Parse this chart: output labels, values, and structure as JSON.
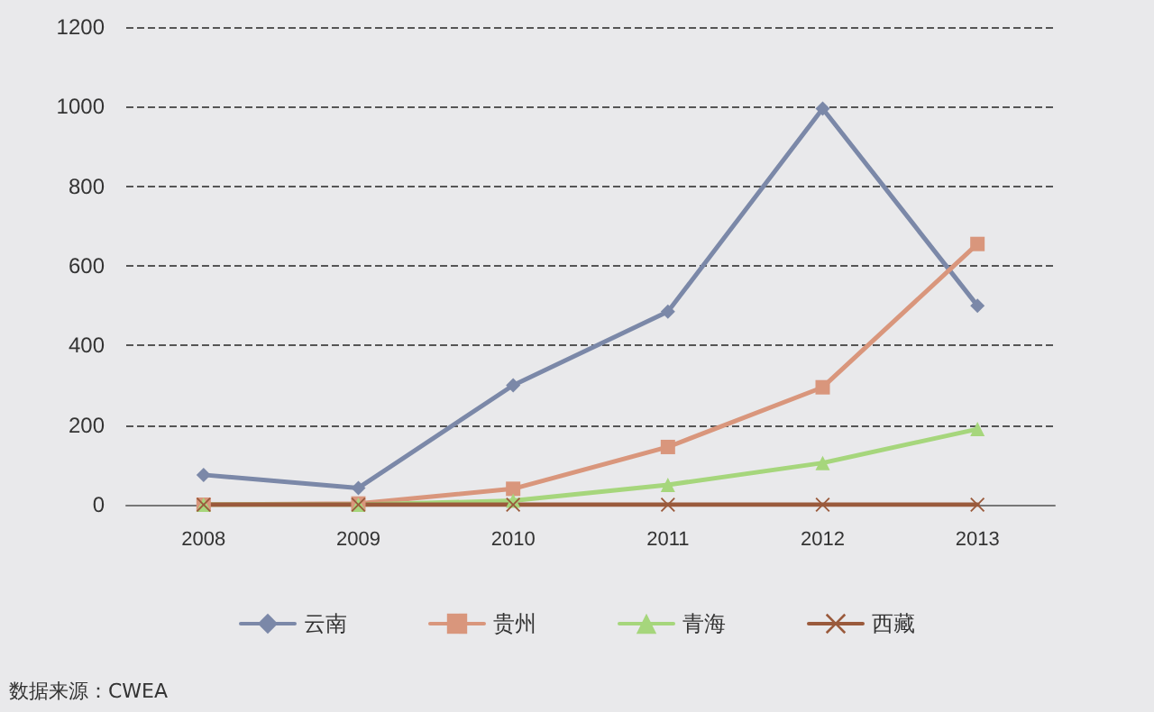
{
  "chart_data": {
    "type": "line",
    "categories": [
      "2008",
      "2009",
      "2010",
      "2011",
      "2012",
      "2013"
    ],
    "series": [
      {
        "name": "云南",
        "color": "#7b88a8",
        "marker": "diamond",
        "values": [
          75,
          42,
          300,
          485,
          995,
          500
        ]
      },
      {
        "name": "贵州",
        "color": "#d9967c",
        "marker": "square",
        "values": [
          0,
          3,
          40,
          145,
          295,
          655
        ]
      },
      {
        "name": "青海",
        "color": "#a6d67c",
        "marker": "triangle",
        "values": [
          0,
          0,
          10,
          50,
          105,
          190
        ]
      },
      {
        "name": "西藏",
        "color": "#9a5a3c",
        "marker": "cross",
        "values": [
          0,
          0,
          0,
          0,
          0,
          0
        ]
      }
    ],
    "ylim": [
      0,
      1200
    ],
    "yticks": [
      0,
      200,
      400,
      600,
      800,
      1000,
      1200
    ],
    "grid": "y",
    "legend": "bottom",
    "line_style": "solid",
    "annotations": [
      "数据来源：CWEA"
    ]
  }
}
